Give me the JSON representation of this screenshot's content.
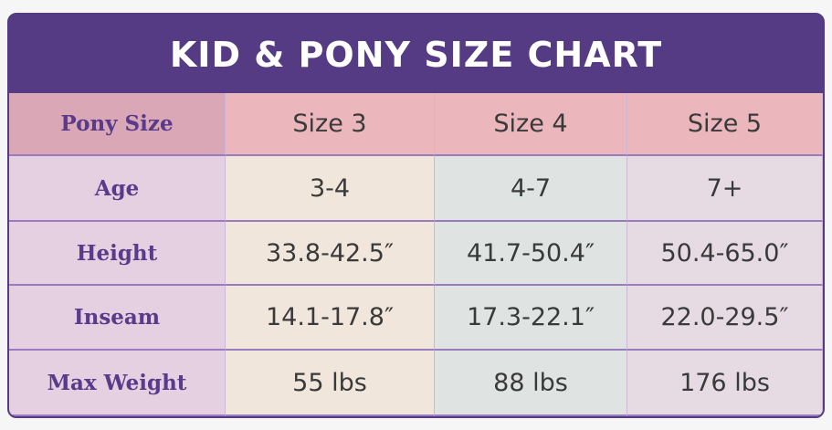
{
  "title": "KID & PONY SIZE CHART",
  "table": {
    "header": [
      "Pony Size",
      "Size 3",
      "Size 4",
      "Size 5"
    ],
    "rows": [
      [
        "Age",
        "3-4",
        "4-7",
        "7+"
      ],
      [
        "Height",
        "33.8-42.5″",
        "41.7-50.4″",
        "50.4-65.0″"
      ],
      [
        "Inseam",
        "14.1-17.8″",
        "17.3-22.1″",
        "22.0-29.5″"
      ],
      [
        "Max Weight",
        "55 lbs",
        "88 lbs",
        "176 lbs"
      ]
    ]
  }
}
